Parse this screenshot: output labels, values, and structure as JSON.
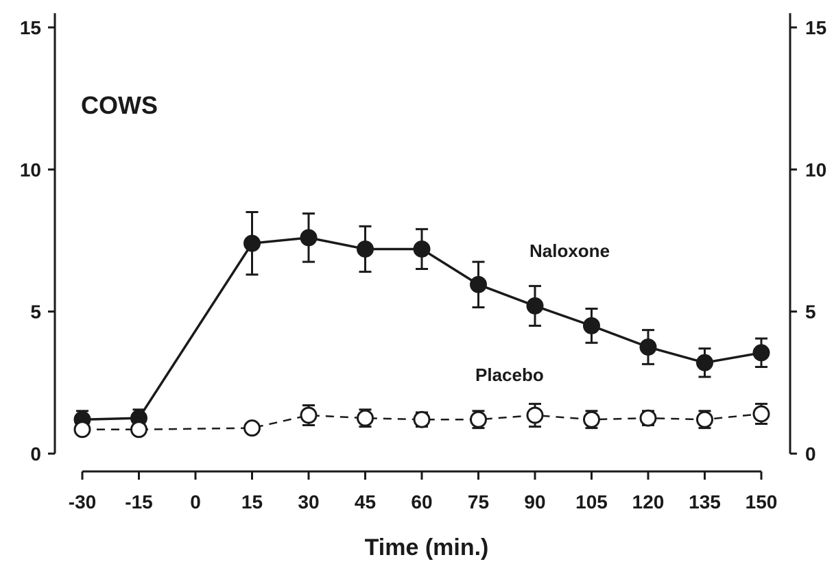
{
  "chart_data": {
    "type": "line",
    "title": "COWS",
    "xlabel": "Time (min.)",
    "ylabel": "",
    "x": [
      -30,
      -15,
      0,
      15,
      30,
      45,
      60,
      75,
      90,
      105,
      120,
      135,
      150
    ],
    "x_tick_labels": [
      "-30",
      "-15",
      "0",
      "15",
      "30",
      "45",
      "60",
      "75",
      "90",
      "105",
      "120",
      "135",
      "150"
    ],
    "y_ticks": [
      0,
      5,
      10,
      15
    ],
    "y_tick_labels": [
      "0",
      "5",
      "10",
      "15"
    ],
    "ylim": [
      0,
      15.5
    ],
    "xlim": [
      -30,
      150
    ],
    "grid": false,
    "legend": "inline labels",
    "series": [
      {
        "name": "Naloxone",
        "marker": "filled-circle",
        "line": "solid",
        "color": "#1a1a1a",
        "points": [
          {
            "x": -30,
            "y": 1.2,
            "err": 0.3
          },
          {
            "x": -15,
            "y": 1.25,
            "err": 0.3
          },
          {
            "x": 15,
            "y": 7.4,
            "err": 1.1
          },
          {
            "x": 30,
            "y": 7.6,
            "err": 0.85
          },
          {
            "x": 45,
            "y": 7.2,
            "err": 0.8
          },
          {
            "x": 60,
            "y": 7.2,
            "err": 0.7
          },
          {
            "x": 75,
            "y": 5.95,
            "err": 0.8
          },
          {
            "x": 90,
            "y": 5.2,
            "err": 0.7
          },
          {
            "x": 105,
            "y": 4.5,
            "err": 0.6
          },
          {
            "x": 120,
            "y": 3.75,
            "err": 0.6
          },
          {
            "x": 135,
            "y": 3.2,
            "err": 0.5
          },
          {
            "x": 150,
            "y": 3.55,
            "err": 0.5
          }
        ]
      },
      {
        "name": "Placebo",
        "marker": "open-circle",
        "line": "dashed",
        "color": "#1a1a1a",
        "points": [
          {
            "x": -30,
            "y": 0.85,
            "err": 0
          },
          {
            "x": -15,
            "y": 0.85,
            "err": 0
          },
          {
            "x": 15,
            "y": 0.9,
            "err": 0
          },
          {
            "x": 30,
            "y": 1.35,
            "err": 0.35
          },
          {
            "x": 45,
            "y": 1.25,
            "err": 0.3
          },
          {
            "x": 60,
            "y": 1.2,
            "err": 0.25
          },
          {
            "x": 75,
            "y": 1.2,
            "err": 0.3
          },
          {
            "x": 90,
            "y": 1.35,
            "err": 0.4
          },
          {
            "x": 105,
            "y": 1.2,
            "err": 0.3
          },
          {
            "x": 120,
            "y": 1.25,
            "err": 0.25
          },
          {
            "x": 135,
            "y": 1.2,
            "err": 0.3
          },
          {
            "x": 150,
            "y": 1.4,
            "err": 0.35
          }
        ]
      }
    ]
  }
}
